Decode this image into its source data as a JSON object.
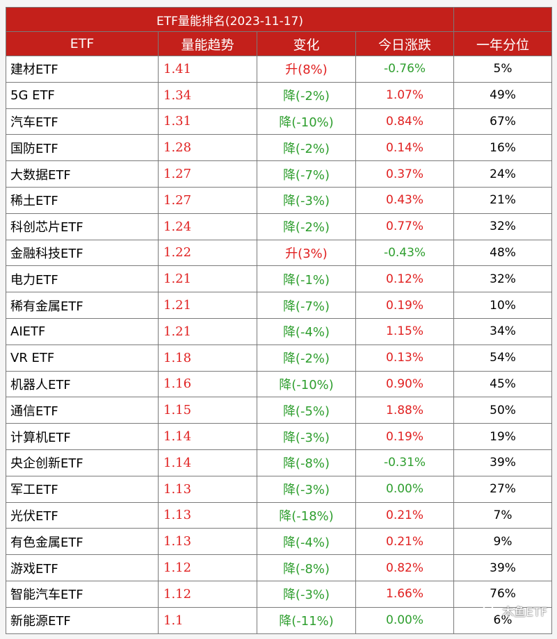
{
  "table": {
    "title": "ETF量能排名(2023-11-17)",
    "headers": [
      "ETF",
      "量能趋势",
      "变化",
      "今日涨跌",
      "一年分位"
    ],
    "rows": [
      {
        "name": "建材ETF",
        "vol": "1.41",
        "chg": "升(8%)",
        "dir": "up",
        "pct": "-0.76%",
        "sign": "neg",
        "pctl": "5%"
      },
      {
        "name": "5G ETF",
        "vol": "1.34",
        "chg": "降(-2%)",
        "dir": "down",
        "pct": "1.07%",
        "sign": "pos",
        "pctl": "49%"
      },
      {
        "name": "汽车ETF",
        "vol": "1.31",
        "chg": "降(-10%)",
        "dir": "down",
        "pct": "0.84%",
        "sign": "pos",
        "pctl": "67%"
      },
      {
        "name": "国防ETF",
        "vol": "1.28",
        "chg": "降(-2%)",
        "dir": "down",
        "pct": "0.14%",
        "sign": "pos",
        "pctl": "16%"
      },
      {
        "name": "大数据ETF",
        "vol": "1.27",
        "chg": "降(-7%)",
        "dir": "down",
        "pct": "0.37%",
        "sign": "pos",
        "pctl": "24%"
      },
      {
        "name": "稀土ETF",
        "vol": "1.27",
        "chg": "降(-3%)",
        "dir": "down",
        "pct": "0.43%",
        "sign": "pos",
        "pctl": "21%"
      },
      {
        "name": "科创芯片ETF",
        "vol": "1.24",
        "chg": "降(-2%)",
        "dir": "down",
        "pct": "0.77%",
        "sign": "pos",
        "pctl": "32%"
      },
      {
        "name": "金融科技ETF",
        "vol": "1.22",
        "chg": "升(3%)",
        "dir": "up",
        "pct": "-0.43%",
        "sign": "neg",
        "pctl": "48%"
      },
      {
        "name": "电力ETF",
        "vol": "1.21",
        "chg": "降(-1%)",
        "dir": "down",
        "pct": "0.12%",
        "sign": "pos",
        "pctl": "32%"
      },
      {
        "name": "稀有金属ETF",
        "vol": "1.21",
        "chg": "降(-7%)",
        "dir": "down",
        "pct": "0.19%",
        "sign": "pos",
        "pctl": "10%"
      },
      {
        "name": "AIETF",
        "vol": "1.21",
        "chg": "降(-4%)",
        "dir": "down",
        "pct": "1.15%",
        "sign": "pos",
        "pctl": "34%"
      },
      {
        "name": "VR ETF",
        "vol": "1.18",
        "chg": "降(-2%)",
        "dir": "down",
        "pct": "0.13%",
        "sign": "pos",
        "pctl": "54%"
      },
      {
        "name": "机器人ETF",
        "vol": "1.16",
        "chg": "降(-10%)",
        "dir": "down",
        "pct": "0.90%",
        "sign": "pos",
        "pctl": "45%"
      },
      {
        "name": "通信ETF",
        "vol": "1.15",
        "chg": "降(-5%)",
        "dir": "down",
        "pct": "1.88%",
        "sign": "pos",
        "pctl": "50%"
      },
      {
        "name": "计算机ETF",
        "vol": "1.14",
        "chg": "降(-3%)",
        "dir": "down",
        "pct": "0.19%",
        "sign": "pos",
        "pctl": "19%"
      },
      {
        "name": "央企创新ETF",
        "vol": "1.14",
        "chg": "降(-8%)",
        "dir": "down",
        "pct": "-0.31%",
        "sign": "neg",
        "pctl": "39%"
      },
      {
        "name": "军工ETF",
        "vol": "1.13",
        "chg": "降(-3%)",
        "dir": "down",
        "pct": "0.00%",
        "sign": "zero",
        "pctl": "27%"
      },
      {
        "name": "光伏ETF",
        "vol": "1.13",
        "chg": "降(-18%)",
        "dir": "down",
        "pct": "0.21%",
        "sign": "pos",
        "pctl": "7%"
      },
      {
        "name": "有色金属ETF",
        "vol": "1.13",
        "chg": "降(-4%)",
        "dir": "down",
        "pct": "0.21%",
        "sign": "pos",
        "pctl": "9%"
      },
      {
        "name": "游戏ETF",
        "vol": "1.12",
        "chg": "降(-8%)",
        "dir": "down",
        "pct": "0.82%",
        "sign": "pos",
        "pctl": "39%"
      },
      {
        "name": "智能汽车ETF",
        "vol": "1.12",
        "chg": "降(-3%)",
        "dir": "down",
        "pct": "1.66%",
        "sign": "pos",
        "pctl": "76%"
      },
      {
        "name": "新能源ETF",
        "vol": "1.1",
        "chg": "降(-11%)",
        "dir": "down",
        "pct": "0.00%",
        "sign": "zero",
        "pctl": "6%"
      }
    ]
  },
  "watermark": {
    "text": "木鱼ETF",
    "icon": "wechat-icon"
  },
  "colors": {
    "header_bg": "#c4201b",
    "up": "#e02020",
    "down": "#2e9e2e"
  }
}
